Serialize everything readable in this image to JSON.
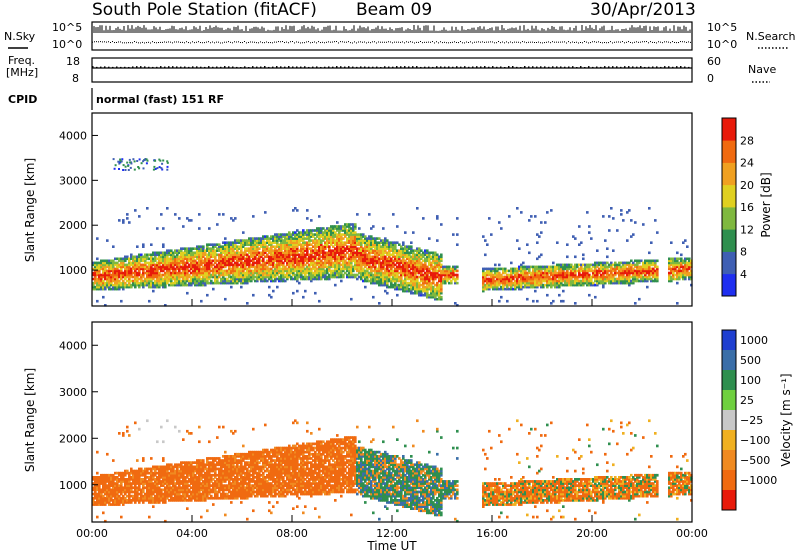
{
  "header": {
    "station": "South Pole Station (fitACF)",
    "beam": "Beam 09",
    "date": "30/Apr/2013"
  },
  "top_panels": {
    "nsky_label": "N.Sky",
    "nsearch_label": "N.Search",
    "nsky_ticks": [
      "10^5",
      "10^0"
    ],
    "nsearch_ticks": [
      "10^5",
      "10^0"
    ],
    "freq_label_1": "Freq.",
    "freq_label_2": "[MHz]",
    "freq_ticks": [
      "18",
      "8"
    ],
    "nave_label": "Nave",
    "nave_ticks": [
      "60",
      "0"
    ],
    "cpid_label": "CPID",
    "cpid_text": "normal (fast) 151 RF"
  },
  "chart_data": [
    {
      "type": "heatmap",
      "quantity": "power",
      "ylabel": "Slant Range [km]",
      "ylim": [
        200,
        4500
      ],
      "yticks": [
        "1000",
        "2000",
        "3000",
        "4000"
      ],
      "xlim_hours": [
        0,
        24
      ],
      "colorbar_label": "Power [dB]",
      "colorbar_ticks": [
        "4",
        "8",
        "12",
        "16",
        "20",
        "24",
        "28"
      ],
      "colorbar_colors": [
        "#1f2ff0",
        "#3f5fb3",
        "#2f8f4f",
        "#7fb83f",
        "#e0d020",
        "#f0a020",
        "#f06a10",
        "#e81a0a"
      ]
    },
    {
      "type": "heatmap",
      "quantity": "velocity",
      "ylabel": "Slant Range [km]",
      "ylim": [
        200,
        4500
      ],
      "yticks": [
        "1000",
        "2000",
        "3000",
        "4000"
      ],
      "xlim_hours": [
        0,
        24
      ],
      "xlabel": "Time UT",
      "xticks": [
        "00:00",
        "04:00",
        "08:00",
        "12:00",
        "16:00",
        "20:00",
        "00:00"
      ],
      "colorbar_label": "Velocity [m s⁻¹]",
      "colorbar_ticks": [
        "1000",
        "500",
        "100",
        "25",
        "−25",
        "−100",
        "−500",
        "−1000"
      ],
      "colorbar_colors": [
        "#1f3fd0",
        "#3a6ea8",
        "#2f8f4f",
        "#6fcf3f",
        "#c8c8c8",
        "#f0b020",
        "#f08a20",
        "#f06a10",
        "#e81a0a"
      ]
    }
  ]
}
